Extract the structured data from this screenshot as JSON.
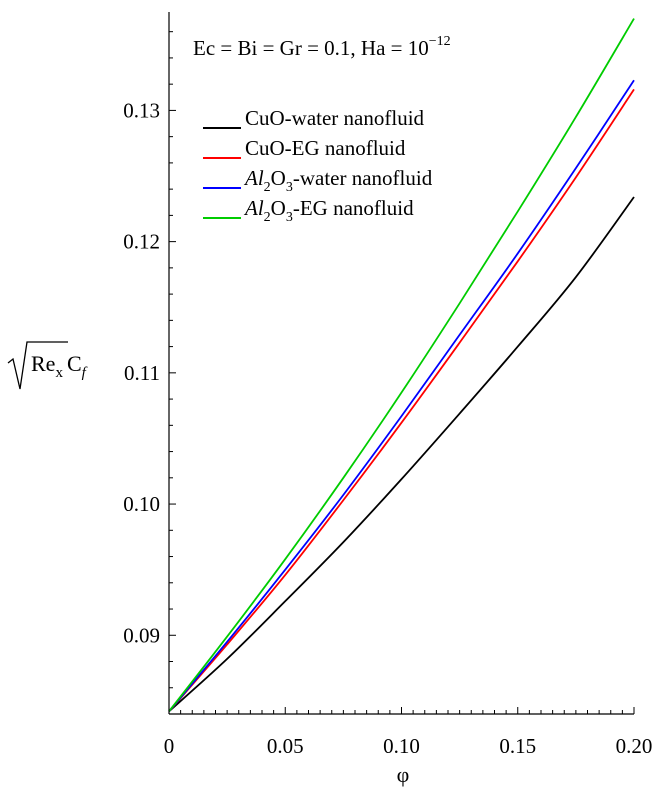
{
  "chart_data": {
    "type": "line",
    "annotation": {
      "prefix": "Ec = Bi = Gr = 0.1, Ha = 10",
      "exponent": "−12"
    },
    "xlabel": "φ",
    "ylabel": {
      "sqrt_body": "Re",
      "sqrt_sub": "x",
      "main": "C",
      "sub": "f"
    },
    "xlim": [
      0,
      0.2
    ],
    "ylim": [
      0.084,
      0.1375
    ],
    "x_ticks": [
      {
        "value": 0,
        "label": "0"
      },
      {
        "value": 0.05,
        "label": "0.05"
      },
      {
        "value": 0.1,
        "label": "0.10"
      },
      {
        "value": 0.15,
        "label": "0.15"
      },
      {
        "value": 0.2,
        "label": "0.20"
      }
    ],
    "y_ticks": [
      {
        "value": 0.09,
        "label": "0.09"
      },
      {
        "value": 0.1,
        "label": "0.10"
      },
      {
        "value": 0.11,
        "label": "0.11"
      },
      {
        "value": 0.12,
        "label": "0.12"
      },
      {
        "value": 0.13,
        "label": "0.13"
      }
    ],
    "x": [
      0,
      0.025,
      0.05,
      0.075,
      0.1,
      0.125,
      0.15,
      0.175,
      0.2
    ],
    "series": [
      {
        "name_parts": [
          {
            "t": "CuO-water nanofluid"
          }
        ],
        "color": "#000000",
        "values": [
          0.0842,
          0.0882,
          0.0926,
          0.0971,
          0.1019,
          0.1069,
          0.112,
          0.1173,
          0.1234
        ]
      },
      {
        "name_parts": [
          {
            "t": "CuO-EG nanofluid"
          }
        ],
        "color": "#ff0000",
        "values": [
          0.0842,
          0.0893,
          0.0946,
          0.1003,
          0.1062,
          0.1123,
          0.1185,
          0.1249,
          0.1316
        ]
      },
      {
        "name_parts": [
          {
            "t": "Al",
            "i": true
          },
          {
            "t": "2",
            "s": true
          },
          {
            "t": "O"
          },
          {
            "t": "3",
            "s": true
          },
          {
            "t": "-water nanofluid"
          }
        ],
        "color": "#0000ff",
        "values": [
          0.0842,
          0.0895,
          0.095,
          0.1007,
          0.1067,
          0.1129,
          0.1191,
          0.1256,
          0.1323
        ]
      },
      {
        "name_parts": [
          {
            "t": "Al",
            "i": true
          },
          {
            "t": "2",
            "s": true
          },
          {
            "t": "O"
          },
          {
            "t": "3",
            "s": true
          },
          {
            "t": "-EG nanofluid"
          }
        ],
        "color": "#00cc00",
        "values": [
          0.0842,
          0.0899,
          0.0958,
          0.102,
          0.1085,
          0.1153,
          0.1223,
          0.1295,
          0.137
        ]
      }
    ],
    "legend_position": "top-left",
    "grid": false
  }
}
